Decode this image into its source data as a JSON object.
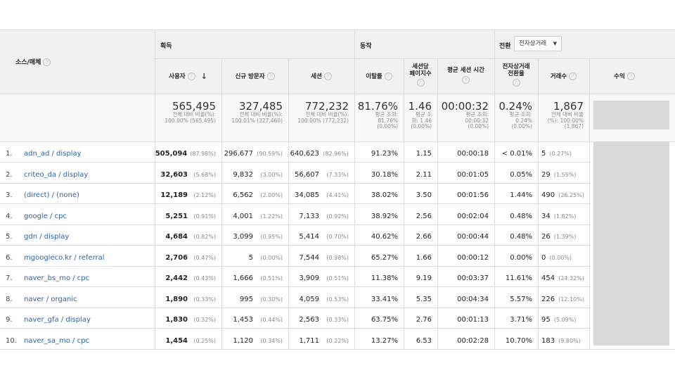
{
  "header": {
    "dimension_label": "소스/매체",
    "group_acquisition": "획득",
    "group_behavior": "동작",
    "group_conversion": "전환",
    "conversion_select": "전자상거래",
    "columns": {
      "users": "사용자",
      "new_users": "신규 방문자",
      "sessions": "세션",
      "bounce_rate": "이탈률",
      "pages_per_session_1": "세션당",
      "pages_per_session_2": "페이지수",
      "avg_session_duration": "평균 세션 시간",
      "ecommerce_rate_1": "전자상거래",
      "ecommerce_rate_2": "전환율",
      "transactions": "거래수",
      "revenue": "수익"
    }
  },
  "totals": {
    "users": {
      "main": "565,495",
      "sub1": "전체 대비 비율(%):",
      "sub2": "100.00% (565,495)"
    },
    "new_users": {
      "main": "327,485",
      "sub1": "전체 대비 비율(%):",
      "sub2": "100.01% (327,460)"
    },
    "sessions": {
      "main": "772,232",
      "sub1": "전체 대비 비율(%):",
      "sub2": "100.00% (772,232)"
    },
    "bounce_rate": {
      "main": "81.76%",
      "sub1": "평균 조회:",
      "sub2": "81.76%",
      "sub3": "(0.00%)"
    },
    "pages": {
      "main": "1.46",
      "sub1": "평균 조",
      "sub2": "회: 1.46",
      "sub3": "(0.00%)"
    },
    "duration": {
      "main": "00:00:32",
      "sub1": "평균 조회:",
      "sub2": "00:00:32",
      "sub3": "(0.00%)"
    },
    "ecommerce_rate": {
      "main": "0.24%",
      "sub1": "평균 조회:",
      "sub2": "0.24%",
      "sub3": "(0.00%)"
    },
    "transactions": {
      "main": "1,867",
      "sub1": "전체 대비 비율",
      "sub2": "(%): 100.00%",
      "sub3": "(1,867)"
    }
  },
  "rows": [
    {
      "num": "1.",
      "source": "adn_ad / display",
      "users": "505,094",
      "users_pct": "(87.98%)",
      "new_users": "296,677",
      "new_users_pct": "(90.59%)",
      "sessions": "640,623",
      "sessions_pct": "(82.96%)",
      "bounce": "91.23%",
      "pages": "1.15",
      "duration": "00:00:18",
      "ecom": "< 0.01%",
      "tx": "5",
      "tx_pct": "(0.27%)"
    },
    {
      "num": "2.",
      "source": "criteo_da / display",
      "users": "32,603",
      "users_pct": "(5.68%)",
      "new_users": "9,832",
      "new_users_pct": "(3.00%)",
      "sessions": "56,607",
      "sessions_pct": "(7.33%)",
      "bounce": "30.18%",
      "pages": "2.11",
      "duration": "00:01:05",
      "ecom": "0.05%",
      "tx": "29",
      "tx_pct": "(1.55%)"
    },
    {
      "num": "3.",
      "source": "(direct) / (none)",
      "users": "12,189",
      "users_pct": "(2.12%)",
      "new_users": "6,562",
      "new_users_pct": "(2.00%)",
      "sessions": "34,085",
      "sessions_pct": "(4.41%)",
      "bounce": "38.02%",
      "pages": "3.50",
      "duration": "00:01:56",
      "ecom": "1.44%",
      "tx": "490",
      "tx_pct": "(26.25%)"
    },
    {
      "num": "4.",
      "source": "google / cpc",
      "users": "5,251",
      "users_pct": "(0.91%)",
      "new_users": "4,001",
      "new_users_pct": "(1.22%)",
      "sessions": "7,133",
      "sessions_pct": "(0.92%)",
      "bounce": "38.92%",
      "pages": "2.56",
      "duration": "00:02:04",
      "ecom": "0.48%",
      "tx": "34",
      "tx_pct": "(1.82%)"
    },
    {
      "num": "5.",
      "source": "gdn / display",
      "users": "4,684",
      "users_pct": "(0.82%)",
      "new_users": "3,099",
      "new_users_pct": "(0.95%)",
      "sessions": "5,414",
      "sessions_pct": "(0.70%)",
      "bounce": "40.62%",
      "pages": "2.66",
      "duration": "00:00:44",
      "ecom": "0.48%",
      "tx": "26",
      "tx_pct": "(1.39%)"
    },
    {
      "num": "6.",
      "source": "mgoogleco.kr / referral",
      "users": "2,706",
      "users_pct": "(0.47%)",
      "new_users": "5",
      "new_users_pct": "(0.00%)",
      "sessions": "7,544",
      "sessions_pct": "(0.98%)",
      "bounce": "65.27%",
      "pages": "1.66",
      "duration": "00:00:12",
      "ecom": "0.00%",
      "tx": "0",
      "tx_pct": "(0.00%)"
    },
    {
      "num": "7.",
      "source": "naver_bs_mo / cpc",
      "users": "2,442",
      "users_pct": "(0.43%)",
      "new_users": "1,666",
      "new_users_pct": "(0.51%)",
      "sessions": "3,909",
      "sessions_pct": "(0.51%)",
      "bounce": "11.38%",
      "pages": "9.19",
      "duration": "00:03:37",
      "ecom": "11.61%",
      "tx": "454",
      "tx_pct": "(24.32%)"
    },
    {
      "num": "8.",
      "source": "naver / organic",
      "users": "1,890",
      "users_pct": "(0.33%)",
      "new_users": "995",
      "new_users_pct": "(0.30%)",
      "sessions": "4,059",
      "sessions_pct": "(0.53%)",
      "bounce": "33.41%",
      "pages": "5.35",
      "duration": "00:04:34",
      "ecom": "5.57%",
      "tx": "226",
      "tx_pct": "(12.10%)"
    },
    {
      "num": "9.",
      "source": "naver_gfa / display",
      "users": "1,830",
      "users_pct": "(0.32%)",
      "new_users": "1,453",
      "new_users_pct": "(0.44%)",
      "sessions": "2,563",
      "sessions_pct": "(0.33%)",
      "bounce": "63.75%",
      "pages": "2.76",
      "duration": "00:01:13",
      "ecom": "3.71%",
      "tx": "95",
      "tx_pct": "(5.09%)"
    },
    {
      "num": "10.",
      "source": "naver_sa_mo / cpc",
      "users": "1,454",
      "users_pct": "(0.25%)",
      "new_users": "1,120",
      "new_users_pct": "(0.34%)",
      "sessions": "1,711",
      "sessions_pct": "(0.22%)",
      "bounce": "13.27%",
      "pages": "6.53",
      "duration": "00:02:28",
      "ecom": "10.70%",
      "tx": "183",
      "tx_pct": "(9.80%)"
    }
  ]
}
